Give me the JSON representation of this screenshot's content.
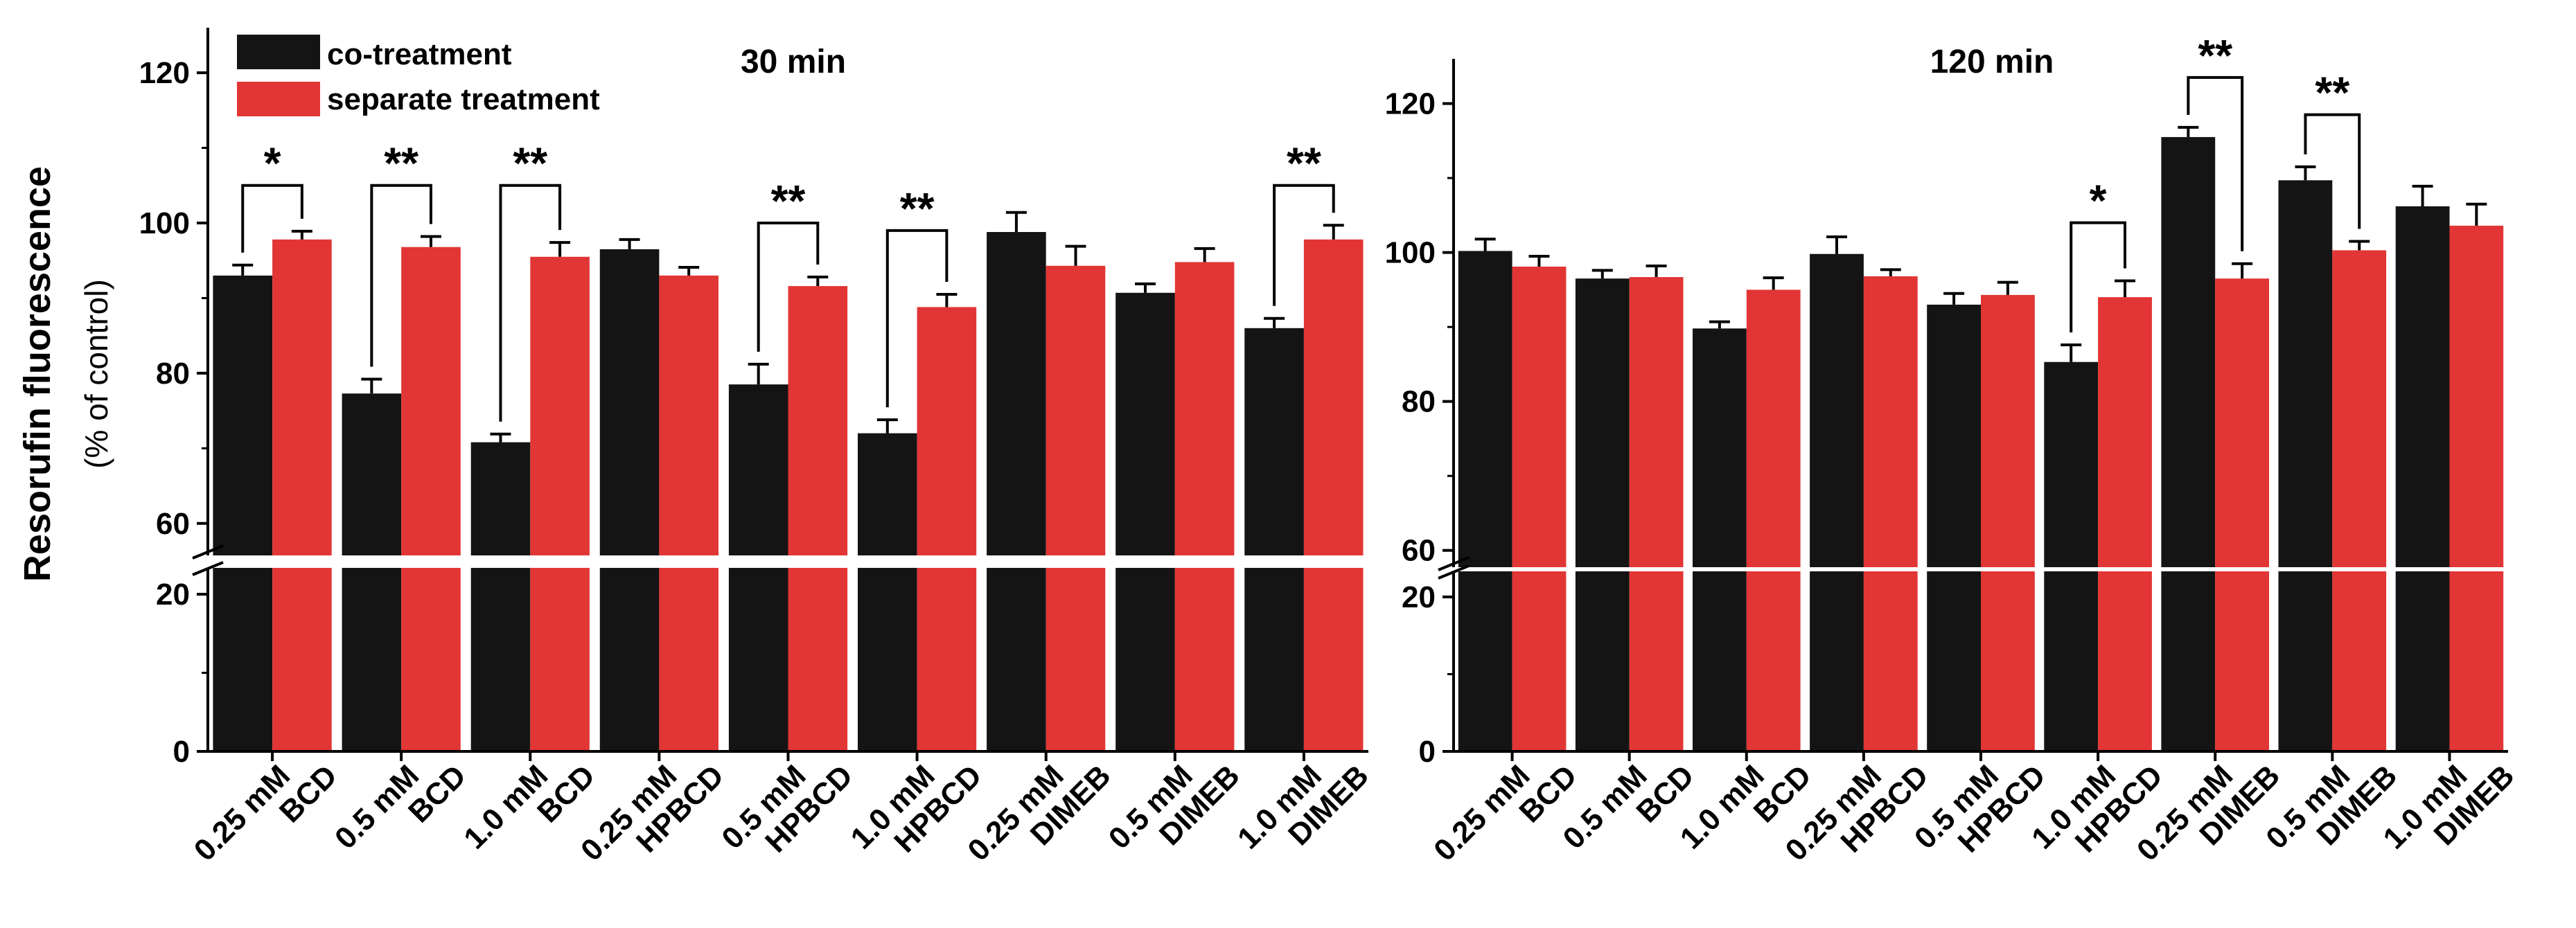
{
  "chart_data": {
    "type": "bar",
    "ylabel": "Resorufin fluorescence",
    "ylabel_sub": "(% of control)",
    "legend": [
      "co-treatment",
      "separate treatment"
    ],
    "colors": {
      "co": "#141414",
      "sep": "#e23535",
      "errorbar": "#000000"
    },
    "panels": [
      {
        "title": "30 min",
        "categories": [
          [
            "0.25 mM",
            "BCD"
          ],
          [
            "0.5 mM",
            "BCD"
          ],
          [
            "1.0 mM",
            "BCD"
          ],
          [
            "0.25 mM",
            "HPBCD"
          ],
          [
            "0.5 mM",
            "HPBCD"
          ],
          [
            "1.0 mM",
            "HPBCD"
          ],
          [
            "0.25 mM",
            "DIMEB"
          ],
          [
            "0.5 mM",
            "DIMEB"
          ],
          [
            "1.0 mM",
            "DIMEB"
          ]
        ],
        "series": [
          {
            "name": "co-treatment",
            "values": [
              93,
              77.3,
              70.8,
              96.5,
              78.5,
              72,
              98.8,
              90.7,
              86
            ],
            "errors": [
              1.4,
              1.9,
              1.1,
              1.3,
              2.7,
              1.8,
              2.6,
              1.2,
              1.3
            ]
          },
          {
            "name": "separate treatment",
            "values": [
              97.8,
              96.8,
              95.5,
              93,
              91.6,
              88.8,
              94.3,
              94.8,
              97.8
            ],
            "errors": [
              1.1,
              1.4,
              1.9,
              1.1,
              1.2,
              1.7,
              2.6,
              1.8,
              1.9
            ]
          }
        ],
        "significance": [
          {
            "category": 0,
            "label": "*",
            "top": 105
          },
          {
            "category": 1,
            "label": "**",
            "top": 105
          },
          {
            "category": 2,
            "label": "**",
            "top": 105
          },
          {
            "category": 4,
            "label": "**",
            "top": 100
          },
          {
            "category": 5,
            "label": "**",
            "top": 99
          },
          {
            "category": 8,
            "label": "**",
            "top": 105
          }
        ],
        "yticks_lower": [
          0,
          20
        ],
        "yticks_upper": [
          60,
          80,
          100,
          120
        ],
        "ylim_lower": [
          0,
          26
        ],
        "ylim_upper": [
          55,
          126
        ]
      },
      {
        "title": "120 min",
        "categories": [
          [
            "0.25 mM",
            "BCD"
          ],
          [
            "0.5 mM",
            "BCD"
          ],
          [
            "1.0 mM",
            "BCD"
          ],
          [
            "0.25 mM",
            "HPBCD"
          ],
          [
            "0.5 mM",
            "HPBCD"
          ],
          [
            "1.0 mM",
            "HPBCD"
          ],
          [
            "0.25 mM",
            "DIMEB"
          ],
          [
            "0.5 mM",
            "DIMEB"
          ],
          [
            "1.0 mM",
            "DIMEB"
          ]
        ],
        "series": [
          {
            "name": "co-treatment",
            "values": [
              100.2,
              96.5,
              89.8,
              99.8,
              93,
              85.3,
              115.5,
              109.7,
              106.2
            ],
            "errors": [
              1.6,
              1.1,
              0.9,
              2.3,
              1.5,
              2.3,
              1.3,
              1.8,
              2.7
            ]
          },
          {
            "name": "separate treatment",
            "values": [
              98.1,
              96.7,
              95,
              96.8,
              94.3,
              94,
              96.5,
              100.3,
              103.6
            ],
            "errors": [
              1.4,
              1.5,
              1.6,
              0.9,
              1.7,
              2.2,
              2,
              1.2,
              2.9
            ]
          }
        ],
        "significance": [
          {
            "category": 5,
            "label": "*",
            "top": 104
          },
          {
            "category": 6,
            "label": "**",
            "top": 123.5
          },
          {
            "category": 7,
            "label": "**",
            "top": 118.5
          }
        ],
        "yticks_lower": [
          0,
          20
        ],
        "yticks_upper": [
          60,
          80,
          100,
          120
        ],
        "ylim_lower": [
          0,
          26
        ],
        "ylim_upper": [
          57,
          126
        ]
      }
    ]
  }
}
